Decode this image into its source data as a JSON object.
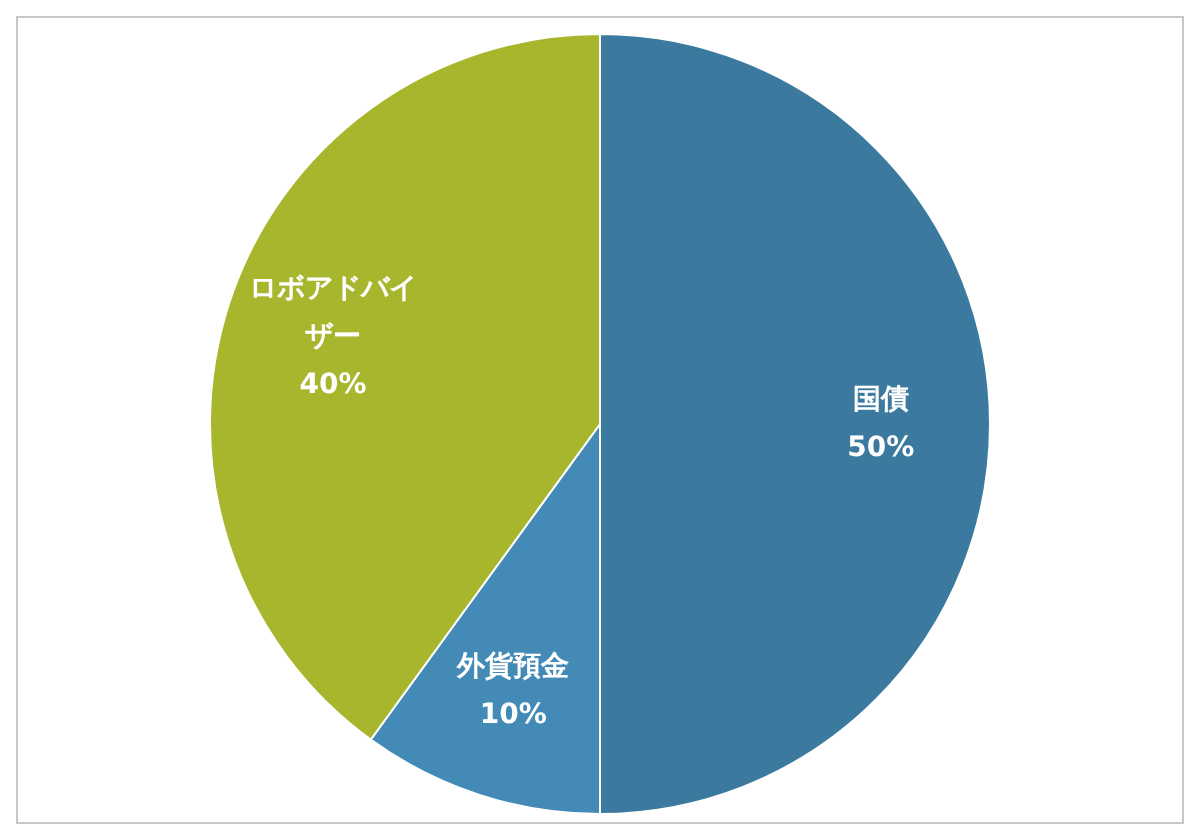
{
  "chart_data": {
    "type": "pie",
    "categories": [
      "国債",
      "外貨預金",
      "ロボアドバイザー"
    ],
    "values": [
      50,
      10,
      40
    ],
    "value_labels": [
      "50%",
      "10%",
      "40%"
    ],
    "colors": [
      "#3b7a9e",
      "#438bb6",
      "#a7b62c"
    ]
  }
}
